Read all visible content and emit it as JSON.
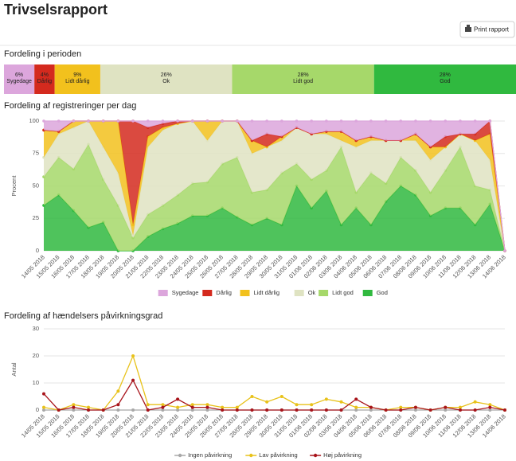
{
  "header": {
    "title": "Trivselsrapport",
    "button": "Print rapport"
  },
  "chart_data": [
    {
      "type": "stacked-bar-100",
      "title": "Fordeling i perioden",
      "categories": [
        "Sygedage",
        "Dårlig",
        "Lidt dårlig",
        "Ok",
        "Lidt god",
        "God"
      ],
      "values": [
        6,
        4,
        9,
        26,
        28,
        28
      ],
      "value_labels": [
        "6%",
        "4%",
        "9%",
        "26%",
        "28%",
        "28%"
      ],
      "colors": [
        "#dca6dc",
        "#d42a1e",
        "#f2c11d",
        "#dfe3c2",
        "#a6d86a",
        "#30b93f"
      ]
    },
    {
      "type": "stacked-area",
      "title": "Fordeling af registreringer per dag",
      "y_label": "Procent",
      "categories": [
        "14/05 2018",
        "15/05 2018",
        "16/05 2018",
        "17/05 2018",
        "18/05 2018",
        "19/05 2018",
        "20/05 2018",
        "21/05 2018",
        "22/05 2018",
        "23/05 2018",
        "24/05 2018",
        "25/05 2018",
        "26/05 2018",
        "27/05 2018",
        "28/05 2018",
        "29/05 2018",
        "30/05 2018",
        "31/05 2018",
        "01/06 2018",
        "02/06 2018",
        "03/06 2018",
        "04/06 2018",
        "05/06 2018",
        "06/06 2018",
        "07/06 2018",
        "08/06 2018",
        "09/06 2018",
        "10/06 2018",
        "11/06 2018",
        "12/06 2018",
        "13/06 2018",
        "14/06 2018"
      ],
      "ylim": [
        0,
        100
      ],
      "yticks": [
        0,
        25,
        50,
        75,
        100
      ],
      "grid": true,
      "legend": "bottom",
      "series": [
        {
          "name": "Sygedage",
          "color": "#dca6dc",
          "values": [
            7,
            8,
            0,
            0,
            0,
            0,
            0,
            5,
            2,
            0,
            0,
            0,
            0,
            0,
            15,
            10,
            12,
            5,
            10,
            8,
            8,
            15,
            12,
            15,
            15,
            10,
            20,
            12,
            10,
            10,
            0,
            0
          ]
        },
        {
          "name": "Dårlig",
          "color": "#d42a1e",
          "values": [
            0,
            0,
            0,
            0,
            0,
            0,
            80,
            7,
            3,
            2,
            0,
            0,
            0,
            0,
            0,
            10,
            0,
            0,
            0,
            0,
            0,
            0,
            0,
            0,
            0,
            0,
            0,
            8,
            0,
            5,
            10,
            0
          ]
        },
        {
          "name": "Lidt dårlig",
          "color": "#f2c11d",
          "values": [
            21,
            2,
            5,
            0,
            20,
            40,
            8,
            8,
            2,
            0,
            0,
            15,
            0,
            0,
            10,
            0,
            3,
            0,
            0,
            2,
            7,
            5,
            3,
            0,
            0,
            5,
            10,
            0,
            0,
            0,
            20,
            0
          ]
        },
        {
          "name": "Ok",
          "color": "#dfe3c2",
          "values": [
            15,
            18,
            32,
            18,
            25,
            25,
            2,
            52,
            58,
            55,
            48,
            32,
            33,
            28,
            30,
            33,
            25,
            28,
            35,
            28,
            5,
            35,
            25,
            33,
            13,
            23,
            25,
            18,
            10,
            35,
            23,
            0
          ]
        },
        {
          "name": "Lidt god",
          "color": "#a6d86a",
          "values": [
            22,
            29,
            32,
            64,
            33,
            35,
            10,
            17,
            18,
            22,
            25,
            26,
            34,
            46,
            25,
            22,
            40,
            17,
            22,
            16,
            60,
            12,
            40,
            14,
            22,
            19,
            18,
            29,
            47,
            30,
            11,
            0
          ]
        },
        {
          "name": "God",
          "color": "#30b93f",
          "values": [
            35,
            43,
            31,
            18,
            22,
            0,
            0,
            11,
            17,
            21,
            27,
            27,
            33,
            26,
            20,
            25,
            20,
            50,
            33,
            46,
            20,
            33,
            20,
            38,
            50,
            43,
            27,
            33,
            33,
            20,
            36,
            0
          ]
        }
      ]
    },
    {
      "type": "line",
      "title": "Fordeling af hændelsers påvirkningsgrad",
      "y_label": "Antal",
      "categories": [
        "14/05 2018",
        "15/05 2018",
        "16/05 2018",
        "17/05 2018",
        "18/05 2018",
        "19/05 2018",
        "20/05 2018",
        "21/05 2018",
        "22/05 2018",
        "23/05 2018",
        "24/05 2018",
        "25/05 2018",
        "26/05 2018",
        "27/05 2018",
        "28/05 2018",
        "29/05 2018",
        "30/05 2018",
        "31/05 2018",
        "01/06 2018",
        "02/06 2018",
        "03/06 2018",
        "04/06 2018",
        "05/06 2018",
        "06/06 2018",
        "07/06 2018",
        "08/06 2018",
        "09/06 2018",
        "10/06 2018",
        "11/06 2018",
        "12/06 2018",
        "13/06 2018",
        "14/06 2018"
      ],
      "ylim": [
        0,
        30
      ],
      "yticks": [
        0,
        10,
        20,
        30
      ],
      "grid": true,
      "legend": "bottom",
      "series": [
        {
          "name": "Ingen påvirkning",
          "color": "#a8a8a8",
          "values": [
            0,
            0,
            0,
            0,
            0,
            0,
            0,
            0,
            0,
            0,
            0,
            0,
            0,
            0,
            0,
            0,
            0,
            0,
            0,
            0,
            0,
            0,
            0,
            0,
            0,
            0,
            0,
            0,
            0,
            0,
            0,
            0
          ]
        },
        {
          "name": "Lav påvirkning",
          "color": "#e8c21a",
          "values": [
            1,
            0,
            2,
            1,
            0,
            7,
            20,
            2,
            2,
            1,
            2,
            2,
            1,
            1,
            5,
            3,
            5,
            2,
            2,
            4,
            3,
            1,
            1,
            0,
            1,
            1,
            0,
            1,
            1,
            3,
            2,
            0
          ]
        },
        {
          "name": "Høj påvirkning",
          "color": "#a8141b",
          "values": [
            6,
            0,
            1,
            0,
            0,
            2,
            11,
            0,
            1,
            4,
            1,
            1,
            0,
            0,
            0,
            0,
            0,
            0,
            0,
            0,
            0,
            4,
            1,
            0,
            0,
            1,
            0,
            1,
            0,
            0,
            1,
            0
          ]
        }
      ]
    }
  ]
}
